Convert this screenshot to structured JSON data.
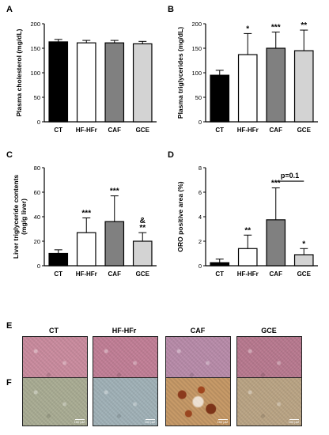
{
  "panels": {
    "A": "A",
    "B": "B",
    "C": "C",
    "D": "D",
    "E": "E",
    "F": "F"
  },
  "chart_data": [
    {
      "id": "A",
      "type": "bar",
      "ylabel": "Plasma cholesterol (mg/dL)",
      "categories": [
        "CT",
        "HF-HFr",
        "CAF",
        "GCE"
      ],
      "values": [
        163,
        161,
        161,
        159
      ],
      "errors": [
        5,
        5,
        5,
        5
      ],
      "ylim": [
        0,
        200
      ],
      "yticks": [
        "0",
        "50",
        "100",
        "150",
        "200"
      ],
      "fills": [
        "#000000",
        "#ffffff",
        "#808080",
        "#d3d3d3"
      ],
      "annotations": [
        "",
        "",
        "",
        ""
      ]
    },
    {
      "id": "B",
      "type": "bar",
      "ylabel": "Plasma triglycerides (mg/dL)",
      "categories": [
        "CT",
        "HF-HFr",
        "CAF",
        "GCE"
      ],
      "values": [
        95,
        137,
        150,
        145
      ],
      "errors": [
        10,
        43,
        33,
        42
      ],
      "ylim": [
        0,
        200
      ],
      "yticks": [
        "0",
        "50",
        "100",
        "150",
        "200"
      ],
      "fills": [
        "#000000",
        "#ffffff",
        "#808080",
        "#d3d3d3"
      ],
      "annotations": [
        "",
        "*",
        "***",
        "**"
      ]
    },
    {
      "id": "C",
      "type": "bar",
      "ylabel": "Liver triglyceride contents (mg/g liver)",
      "categories": [
        "CT",
        "HF-HFr",
        "CAF",
        "GCE"
      ],
      "values": [
        10,
        27,
        36,
        20
      ],
      "errors": [
        3,
        12,
        21,
        7
      ],
      "ylim": [
        0,
        80
      ],
      "yticks": [
        "0",
        "20",
        "40",
        "60",
        "80"
      ],
      "fills": [
        "#000000",
        "#ffffff",
        "#808080",
        "#d3d3d3"
      ],
      "annotations": [
        "",
        "***",
        "***",
        "&\n**"
      ]
    },
    {
      "id": "D",
      "type": "bar",
      "ylabel": "ORO positive area (%)",
      "categories": [
        "CT",
        "HF-HFr",
        "CAF",
        "GCE"
      ],
      "values": [
        0.25,
        1.4,
        3.75,
        0.9
      ],
      "errors": [
        0.3,
        1.1,
        2.6,
        0.5
      ],
      "ylim": [
        0,
        8
      ],
      "yticks": [
        "0",
        "2",
        "4",
        "6",
        "8"
      ],
      "fills": [
        "#000000",
        "#ffffff",
        "#808080",
        "#d3d3d3"
      ],
      "annotations": [
        "",
        "**",
        "***",
        "*"
      ],
      "bracket": {
        "from": 2,
        "to": 3,
        "label": "p=0.1"
      }
    }
  ],
  "micrographs": {
    "labels": [
      "CT",
      "HF-HFr",
      "CAF",
      "GCE"
    ],
    "scale": "100 µM",
    "he_colors": [
      "#c98a9d",
      "#c07d95",
      "#b78aa8",
      "#b7788e"
    ],
    "oro_colors": [
      "#a8ab92",
      "#9fb0b6",
      "#c79a68",
      "#b9a383"
    ]
  }
}
